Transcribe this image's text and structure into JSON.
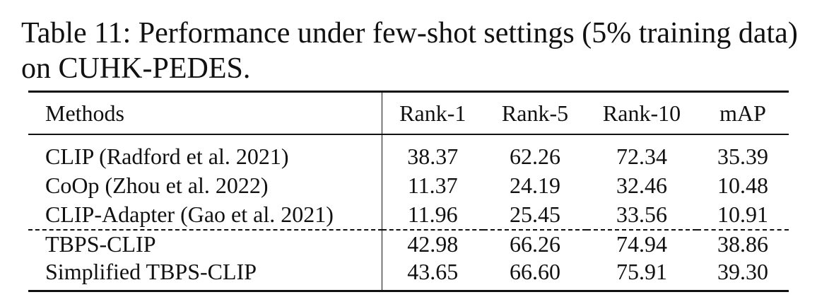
{
  "caption": "Table 11: Performance under few-shot settings (5% training data) on CUHK-PEDES.",
  "table": {
    "headers": [
      "Methods",
      "Rank-1",
      "Rank-5",
      "Rank-10",
      "mAP"
    ],
    "groups": [
      [
        {
          "method": "CLIP (Radford et al. 2021)",
          "values": [
            "38.37",
            "62.26",
            "72.34",
            "35.39"
          ]
        },
        {
          "method": "CoOp (Zhou et al. 2022)",
          "values": [
            "11.37",
            "24.19",
            "32.46",
            "10.48"
          ]
        },
        {
          "method": "CLIP-Adapter (Gao et al. 2021)",
          "values": [
            "11.96",
            "25.45",
            "33.56",
            "10.91"
          ]
        }
      ],
      [
        {
          "method": "TBPS-CLIP",
          "values": [
            "42.98",
            "66.26",
            "74.94",
            "38.86"
          ]
        },
        {
          "method": "Simplified TBPS-CLIP",
          "values": [
            "43.65",
            "66.60",
            "75.91",
            "39.30"
          ]
        }
      ]
    ]
  }
}
